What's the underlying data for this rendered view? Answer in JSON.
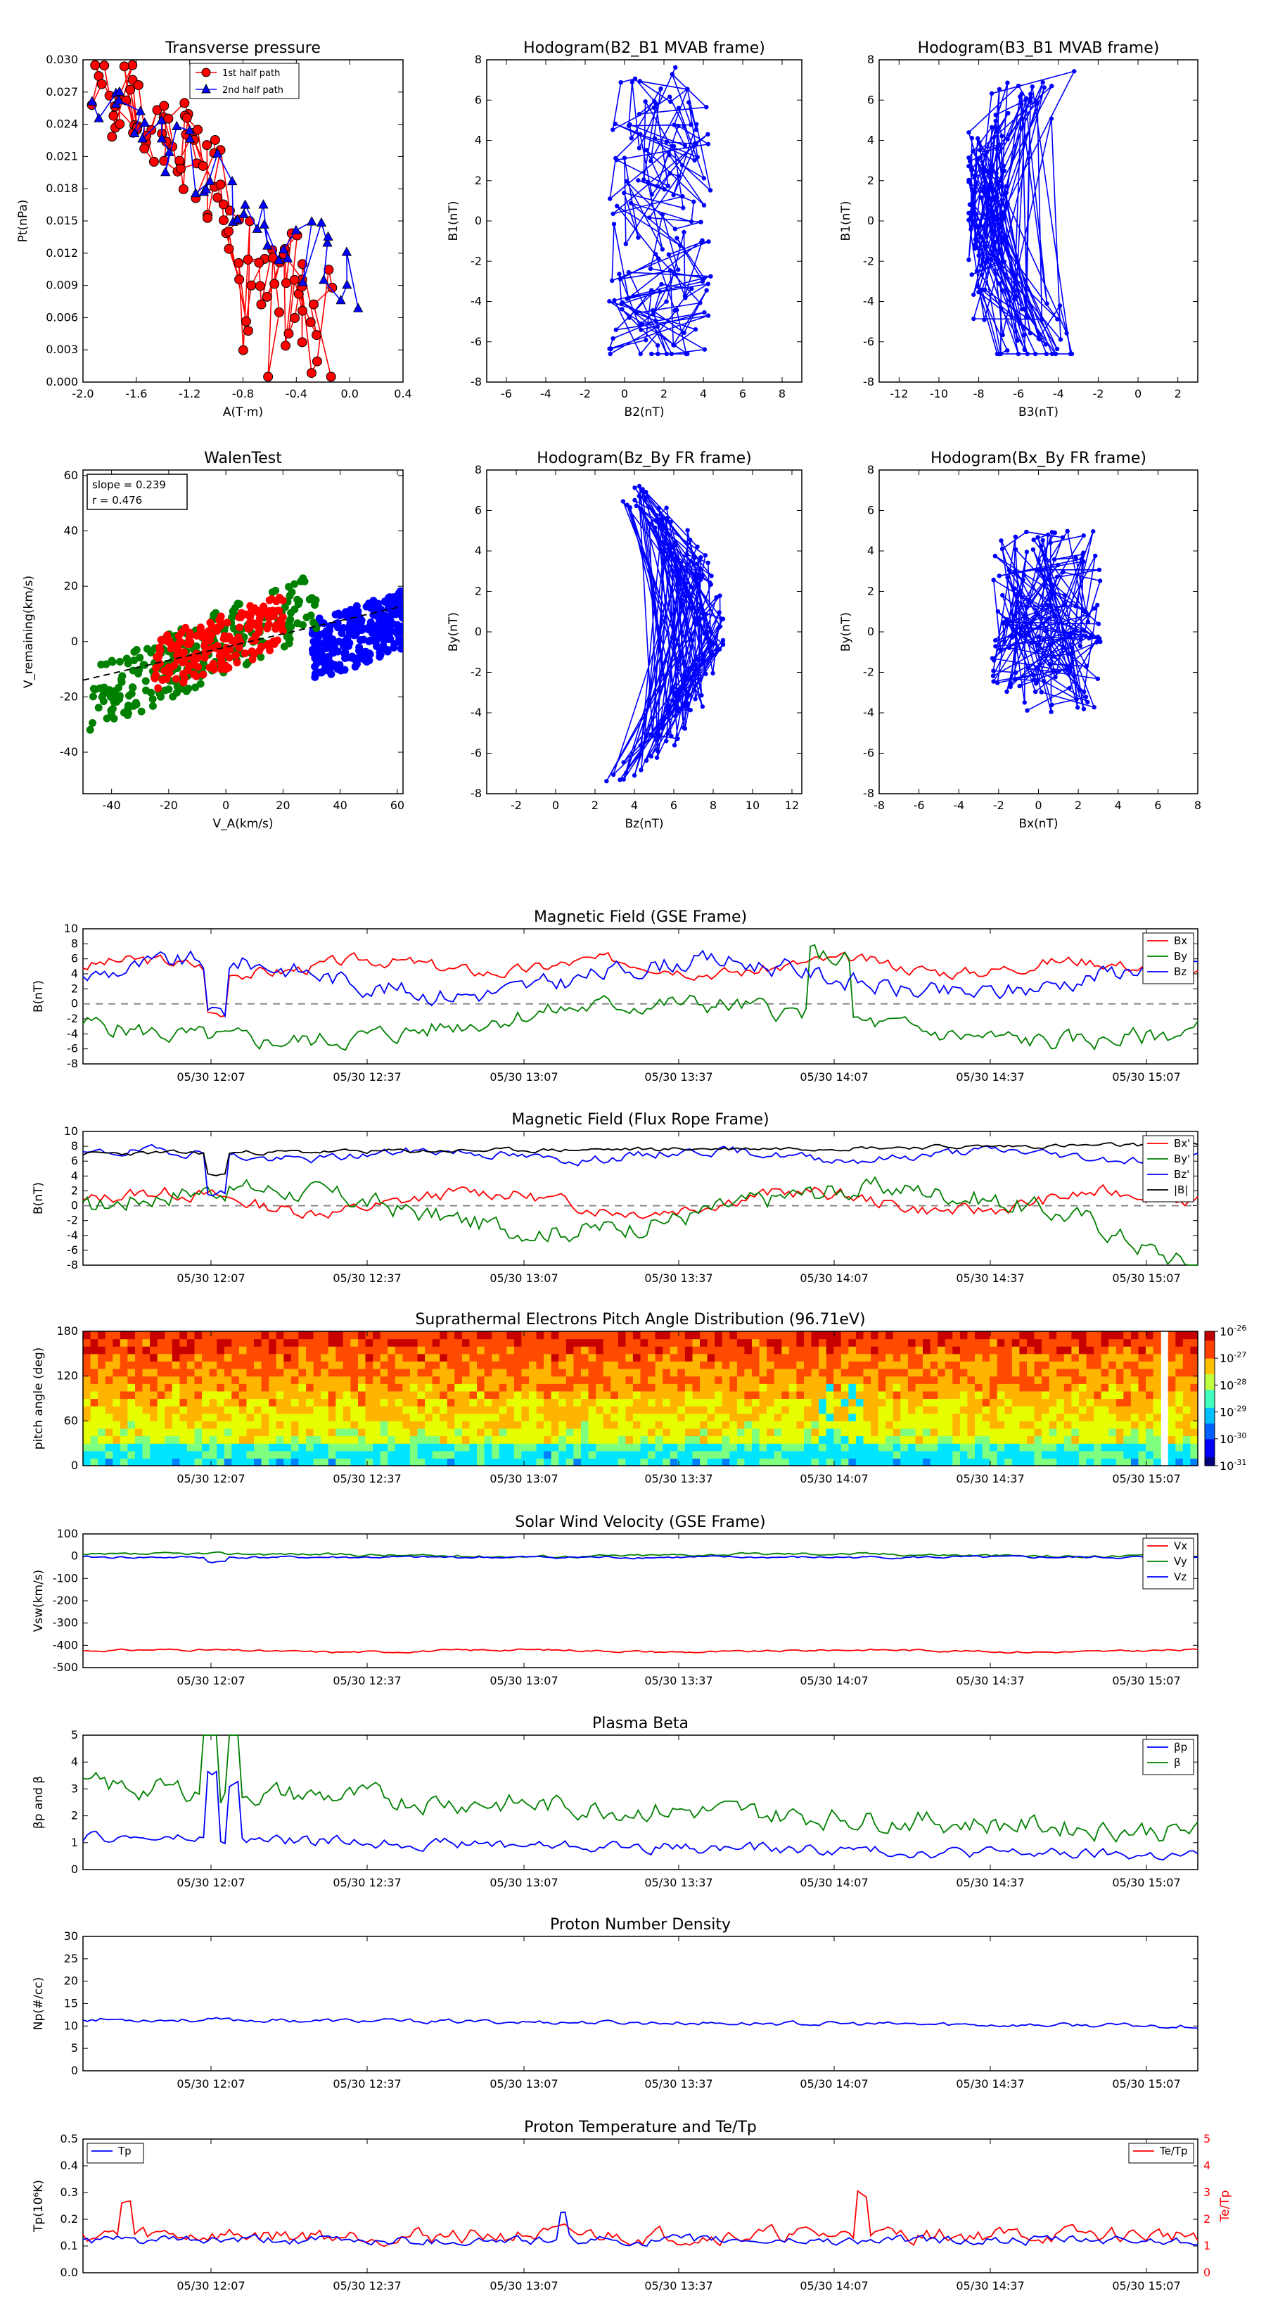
{
  "colors": {
    "red": "#ff0000",
    "green": "#008000",
    "blue": "#0000ff",
    "black": "#000000",
    "gray": "#808080"
  },
  "chart_data": [
    {
      "id": "tp",
      "type": "scatter",
      "title": "Transverse pressure",
      "xlabel": "A(T·m)",
      "ylabel": "Pt(nPa)",
      "xlim": [
        -2.0,
        0.4
      ],
      "ylim": [
        0,
        0.03
      ],
      "xticks": [
        "-2.0",
        "-1.6",
        "-1.2",
        "-0.8",
        "-0.4",
        "0.0",
        "0.4"
      ],
      "yticks": [
        "0.000",
        "0.003",
        "0.006",
        "0.009",
        "0.012",
        "0.015",
        "0.018",
        "0.021",
        "0.024",
        "0.027",
        "0.030"
      ],
      "legend": [
        "1st half path",
        "2nd half path"
      ],
      "legend_loc": "top-center"
    },
    {
      "id": "h1",
      "type": "line",
      "title": "Hodogram(B2_B1 MVAB frame)",
      "xlabel": "B2(nT)",
      "ylabel": "B1(nT)",
      "xlim": [
        -7,
        9
      ],
      "ylim": [
        -8,
        8
      ],
      "xticks": [
        "-6",
        "-4",
        "-2",
        "0",
        "2",
        "4",
        "6",
        "8"
      ],
      "yticks": [
        "-8",
        "-6",
        "-4",
        "-2",
        "0",
        "2",
        "4",
        "6",
        "8"
      ]
    },
    {
      "id": "h2",
      "type": "line",
      "title": "Hodogram(B3_B1 MVAB frame)",
      "xlabel": "B3(nT)",
      "ylabel": "B1(nT)",
      "xlim": [
        -13,
        3
      ],
      "ylim": [
        -8,
        8
      ],
      "xticks": [
        "-12",
        "-10",
        "-8",
        "-6",
        "-4",
        "-2",
        "0",
        "2"
      ],
      "yticks": [
        "-8",
        "-6",
        "-4",
        "-2",
        "0",
        "2",
        "4",
        "6",
        "8"
      ]
    },
    {
      "id": "walen",
      "type": "scatter",
      "title": "WalenTest",
      "xlabel": "V_A(km/s)",
      "ylabel": "V_remaining(km/s)",
      "xlim": [
        -50,
        62
      ],
      "ylim": [
        -55,
        62
      ],
      "xticks": [
        "-40",
        "-20",
        "0",
        "20",
        "40",
        "60"
      ],
      "yticks": [
        "-40",
        "-20",
        "0",
        "20",
        "40",
        "60"
      ],
      "annotation": [
        "slope = 0.239",
        "r = 0.476"
      ]
    },
    {
      "id": "h3",
      "type": "line",
      "title": "Hodogram(Bz_By FR frame)",
      "xlabel": "Bz(nT)",
      "ylabel": "By(nT)",
      "xlim": [
        -3.5,
        12.5
      ],
      "ylim": [
        -8,
        8
      ],
      "xticks": [
        "-2",
        "0",
        "2",
        "4",
        "6",
        "8",
        "10",
        "12"
      ],
      "yticks": [
        "-8",
        "-6",
        "-4",
        "-2",
        "0",
        "2",
        "4",
        "6",
        "8"
      ]
    },
    {
      "id": "h4",
      "type": "line",
      "title": "Hodogram(Bx_By FR frame)",
      "xlabel": "Bx(nT)",
      "ylabel": "By(nT)",
      "xlim": [
        -8,
        8
      ],
      "ylim": [
        -8,
        8
      ],
      "xticks": [
        "-8",
        "-6",
        "-4",
        "-2",
        "0",
        "2",
        "4",
        "6",
        "8"
      ],
      "yticks": [
        "-8",
        "-6",
        "-4",
        "-2",
        "0",
        "2",
        "4",
        "6",
        "8"
      ]
    },
    {
      "id": "ts1",
      "type": "line",
      "title": "Magnetic Field (GSE Frame)",
      "ylabel": "B(nT)",
      "ylim": [
        -8,
        10
      ],
      "yticks": [
        "-8",
        "-6",
        "-4",
        "-2",
        "0",
        "2",
        "4",
        "6",
        "8",
        "10"
      ],
      "xticks": [
        "05/30 12:07",
        "05/30 12:37",
        "05/30 13:07",
        "05/30 13:37",
        "05/30 14:07",
        "05/30 14:37",
        "05/30 15:07"
      ],
      "legend": [
        "Bx",
        "By",
        "Bz"
      ]
    },
    {
      "id": "ts2",
      "type": "line",
      "title": "Magnetic Field (Flux Rope Frame)",
      "ylabel": "B(nT)",
      "ylim": [
        -8,
        10
      ],
      "yticks": [
        "-8",
        "-6",
        "-4",
        "-2",
        "0",
        "2",
        "4",
        "6",
        "8",
        "10"
      ],
      "xticks": [
        "05/30 12:07",
        "05/30 12:37",
        "05/30 13:07",
        "05/30 13:37",
        "05/30 14:07",
        "05/30 14:37",
        "05/30 15:07"
      ],
      "legend": [
        "Bx'",
        "By'",
        "Bz'",
        "|B|"
      ]
    },
    {
      "id": "pad",
      "type": "heatmap",
      "title": "Suprathermal Electrons Pitch Angle Distribution (96.71eV)",
      "ylabel": "pitch angle (deg)",
      "ylim": [
        0,
        180
      ],
      "yticks": [
        "0",
        "60",
        "120",
        "180"
      ],
      "xticks": [
        "05/30 12:07",
        "05/30 12:37",
        "05/30 13:07",
        "05/30 13:37",
        "05/30 14:07",
        "05/30 14:37",
        "05/30 15:07"
      ],
      "colorbar": [
        "10",
        "10",
        "10",
        "10",
        "10",
        "10"
      ],
      "colorbar_exp": [
        "-26",
        "-27",
        "-28",
        "-29",
        "-30",
        "-31"
      ]
    },
    {
      "id": "ts3",
      "type": "line",
      "title": "Solar Wind Velocity (GSE Frame)",
      "ylabel": "Vsw(km/s)",
      "ylim": [
        -500,
        100
      ],
      "yticks": [
        "-500",
        "-400",
        "-300",
        "-200",
        "-100",
        "0",
        "100"
      ],
      "xticks": [
        "05/30 12:07",
        "05/30 12:37",
        "05/30 13:07",
        "05/30 13:37",
        "05/30 14:07",
        "05/30 14:37",
        "05/30 15:07"
      ],
      "legend": [
        "Vx",
        "Vy",
        "Vz"
      ]
    },
    {
      "id": "ts4",
      "type": "line",
      "title": "Plasma Beta",
      "ylabel": "βp and β",
      "ylim": [
        0,
        5
      ],
      "yticks": [
        "0",
        "1",
        "2",
        "3",
        "4",
        "5"
      ],
      "xticks": [
        "05/30 12:07",
        "05/30 12:37",
        "05/30 13:07",
        "05/30 13:37",
        "05/30 14:07",
        "05/30 14:37",
        "05/30 15:07"
      ],
      "legend": [
        "βp",
        "β"
      ]
    },
    {
      "id": "ts5",
      "type": "line",
      "title": "Proton Number Density",
      "ylabel": "Np(#/cc)",
      "ylim": [
        0,
        30
      ],
      "yticks": [
        "0",
        "5",
        "10",
        "15",
        "20",
        "25",
        "30"
      ],
      "xticks": [
        "05/30 12:07",
        "05/30 12:37",
        "05/30 13:07",
        "05/30 13:37",
        "05/30 14:07",
        "05/30 14:37",
        "05/30 15:07"
      ]
    },
    {
      "id": "ts6",
      "type": "line",
      "title": "Proton Temperature and Te/Tp",
      "ylabel": "Tp(10⁶K)",
      "ylabel2": "Te/Tp",
      "ylim": [
        0,
        0.5
      ],
      "yticks": [
        "0.0",
        "0.1",
        "0.2",
        "0.3",
        "0.4",
        "0.5"
      ],
      "ylim2": [
        0,
        5
      ],
      "yticks2": [
        "0",
        "1",
        "2",
        "3",
        "4",
        "5"
      ],
      "xticks": [
        "05/30 12:07",
        "05/30 12:37",
        "05/30 13:07",
        "05/30 13:37",
        "05/30 14:07",
        "05/30 14:37",
        "05/30 15:07"
      ],
      "legend": [
        "Tp"
      ],
      "legend2": [
        "Te/Tp"
      ]
    }
  ]
}
